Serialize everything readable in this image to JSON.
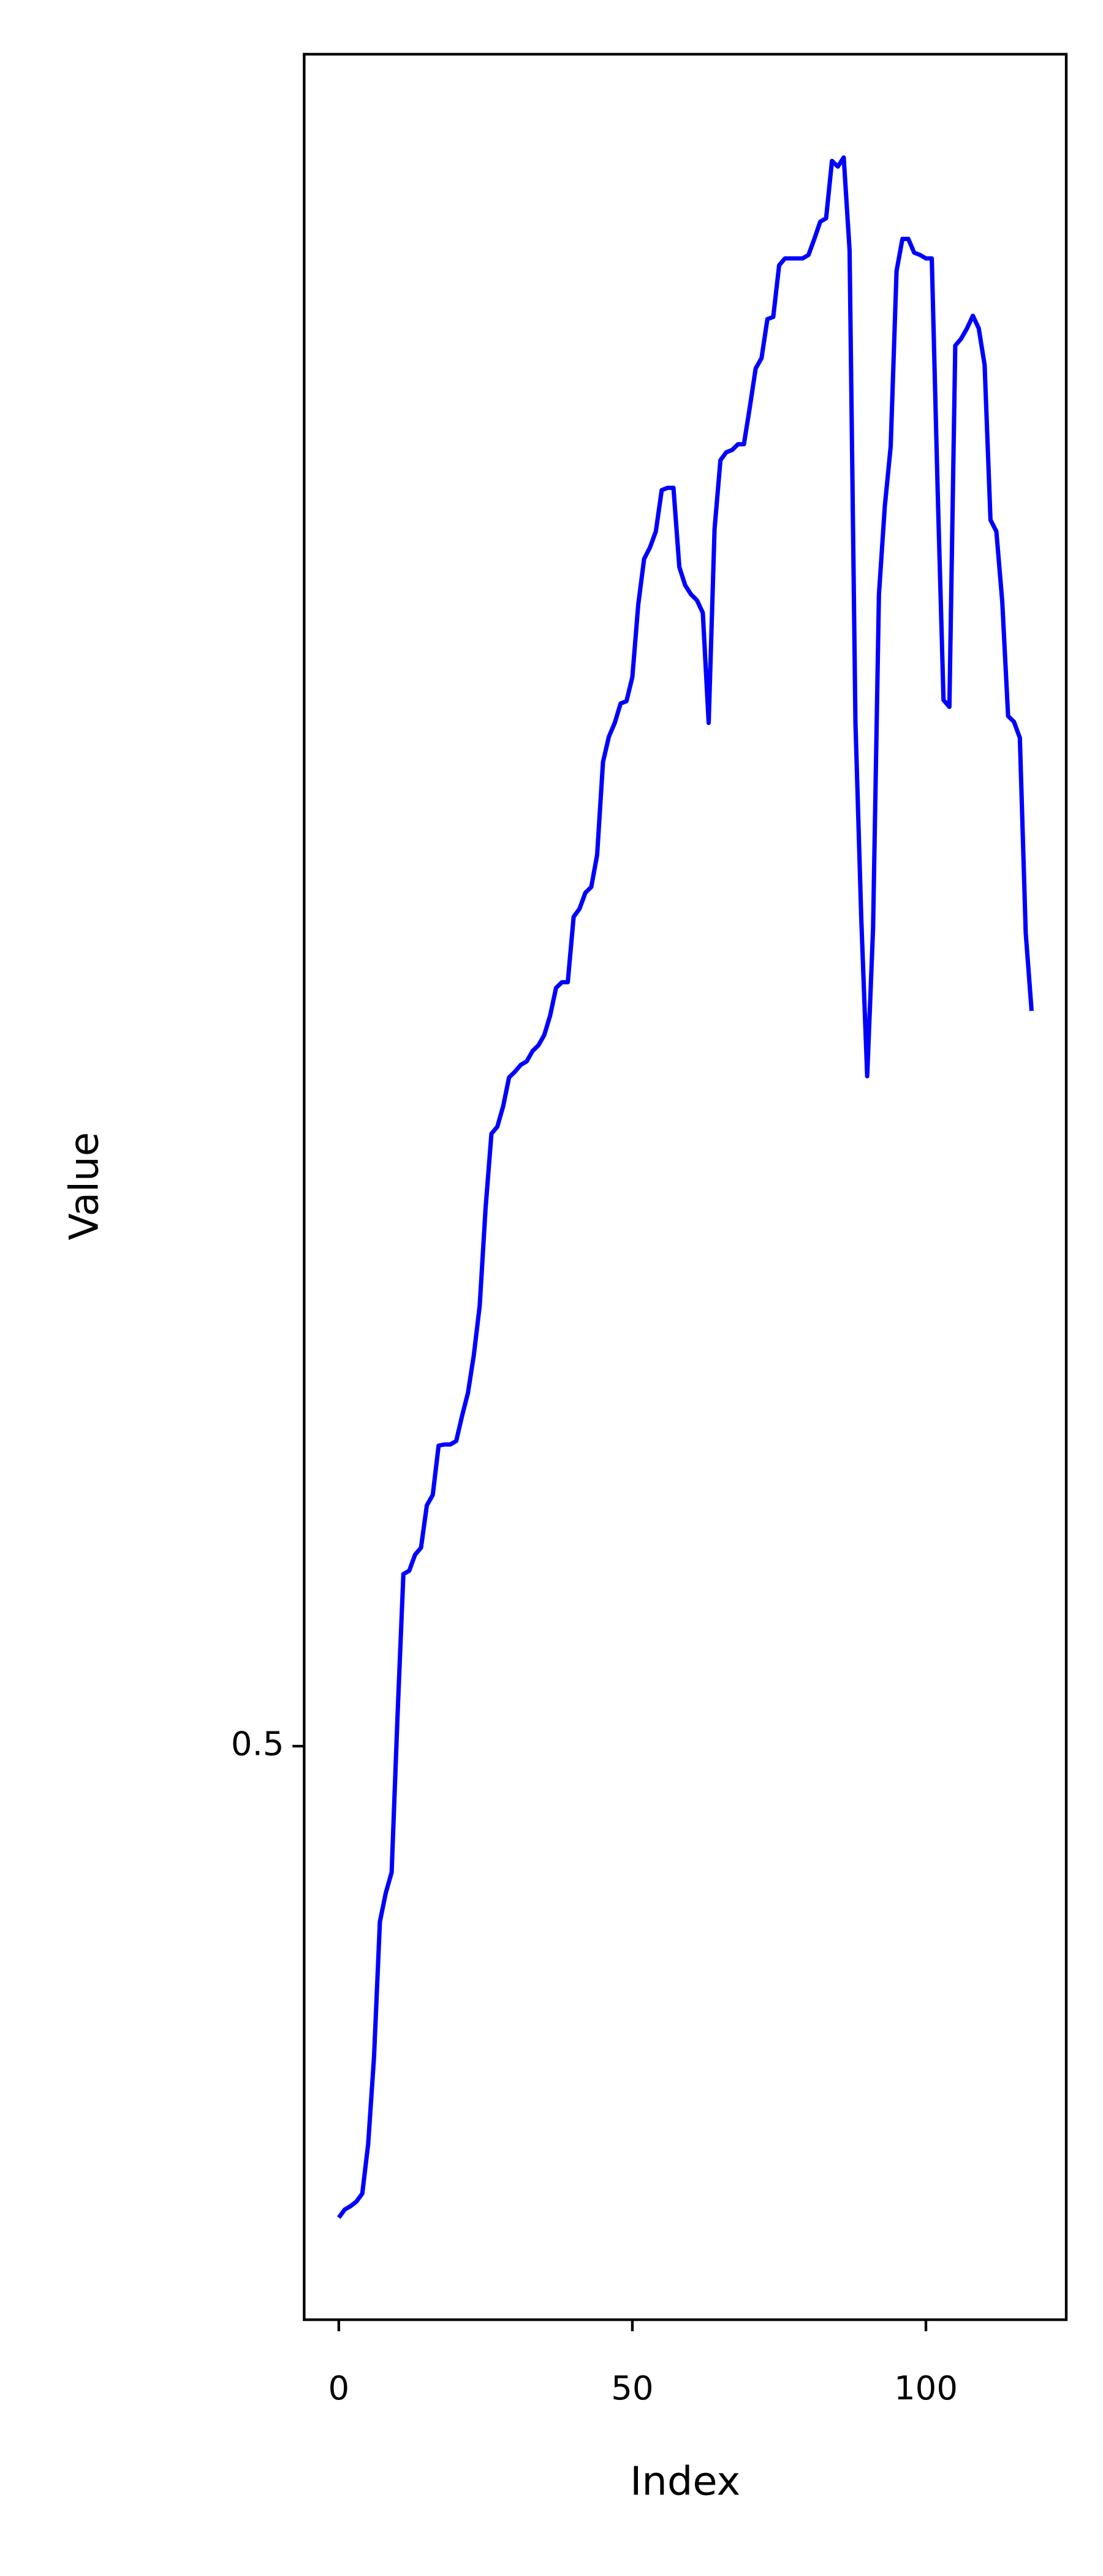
{
  "chart_data": {
    "type": "line",
    "xlabel": "Index",
    "ylabel": "Value",
    "x": [
      0,
      1,
      2,
      3,
      4,
      5,
      6,
      7,
      8,
      9,
      10,
      11,
      12,
      13,
      14,
      15,
      16,
      17,
      18,
      19,
      20,
      21,
      22,
      23,
      24,
      25,
      26,
      27,
      28,
      29,
      30,
      31,
      32,
      33,
      34,
      35,
      36,
      37,
      38,
      39,
      40,
      41,
      42,
      43,
      44,
      45,
      46,
      47,
      48,
      49,
      50,
      51,
      52,
      53,
      54,
      55,
      56,
      57,
      58,
      59,
      60,
      61,
      62,
      63,
      64,
      65,
      66,
      67,
      68,
      69,
      70,
      71,
      72,
      73,
      74,
      75,
      76,
      77,
      78,
      79,
      80,
      81,
      82,
      83,
      84,
      85,
      86,
      87,
      88,
      89,
      90,
      91,
      92,
      93,
      94,
      95,
      96,
      97,
      98,
      99,
      100,
      101,
      102,
      103,
      104,
      105,
      106,
      107,
      108,
      109,
      110,
      111,
      112,
      113,
      114,
      115,
      116,
      117,
      118
    ],
    "series": [
      {
        "color": "#0000ff",
        "values": [
          0.4589,
          0.4596,
          0.4599,
          0.4603,
          0.461,
          0.4653,
          0.4729,
          0.4847,
          0.4872,
          0.489,
          0.5026,
          0.515,
          0.5153,
          0.5167,
          0.5173,
          0.521,
          0.5219,
          0.5262,
          0.5263,
          0.5263,
          0.5266,
          0.5288,
          0.5308,
          0.5341,
          0.5384,
          0.5469,
          0.5534,
          0.554,
          0.5558,
          0.5583,
          0.5588,
          0.5594,
          0.5597,
          0.5606,
          0.5611,
          0.562,
          0.5637,
          0.5661,
          0.5666,
          0.5666,
          0.5723,
          0.573,
          0.5744,
          0.5749,
          0.5777,
          0.5858,
          0.588,
          0.5892,
          0.5909,
          0.5911,
          0.5932,
          0.5995,
          0.6035,
          0.6045,
          0.6059,
          0.6095,
          0.6097,
          0.6097,
          0.6028,
          0.6012,
          0.6004,
          0.5999,
          0.5988,
          0.5892,
          0.6061,
          0.6121,
          0.6128,
          0.613,
          0.6135,
          0.6135,
          0.6167,
          0.6201,
          0.621,
          0.6244,
          0.6246,
          0.6291,
          0.6297,
          0.6297,
          0.6297,
          0.6297,
          0.63,
          0.6314,
          0.6329,
          0.6332,
          0.6382,
          0.6377,
          0.6385,
          0.6304,
          0.5892,
          0.572,
          0.5584,
          0.5713,
          0.6004,
          0.6081,
          0.6133,
          0.6286,
          0.6314,
          0.6314,
          0.6302,
          0.63,
          0.6297,
          0.6297,
          0.6095,
          0.5912,
          0.5906,
          0.6221,
          0.6227,
          0.6236,
          0.6247,
          0.6236,
          0.6204,
          0.6069,
          0.6059,
          0.5998,
          0.5898,
          0.5893,
          0.5879,
          0.5709,
          0.5641
        ]
      }
    ],
    "xlim": [
      -5.9,
      123.9
    ],
    "xticks": [
      0,
      50,
      100
    ],
    "ylim": [
      0.45,
      0.6475
    ],
    "yticks": [
      0.5
    ]
  }
}
